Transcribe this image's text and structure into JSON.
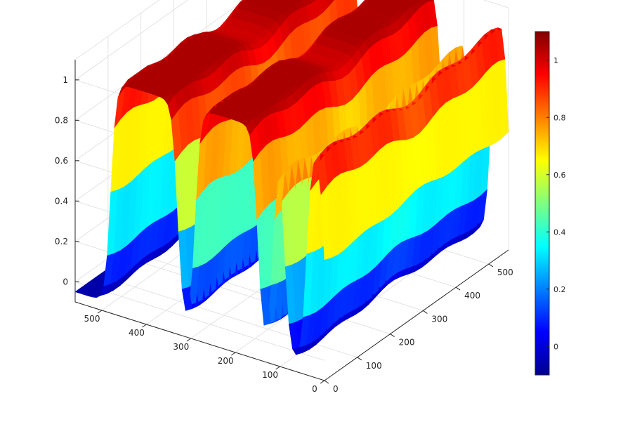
{
  "chart_data": {
    "type": "surface3d",
    "title": "",
    "xlabel": "",
    "ylabel": "",
    "zlabel": "",
    "colormap": "jet",
    "view": "3D perspective, x axis toward lower-right, y axis toward upper-right",
    "xlim": [
      0,
      560
    ],
    "ylim": [
      0,
      560
    ],
    "zlim": [
      -0.1,
      1.1
    ],
    "x_ticks": [
      0,
      100,
      200,
      300,
      400,
      500
    ],
    "y_ticks": [
      0,
      100,
      200,
      300,
      400,
      500
    ],
    "z_ticks": [
      0,
      0.2,
      0.4,
      0.6,
      0.8,
      1
    ],
    "x_tick_labels": [
      "0",
      "100",
      "200",
      "300",
      "400",
      "500"
    ],
    "y_tick_labels": [
      "0",
      "100",
      "200",
      "300",
      "400",
      "500"
    ],
    "z_tick_labels": [
      "0",
      "0.2",
      "0.4",
      "0.6",
      "0.8",
      "1"
    ],
    "grid": true,
    "colorbar": {
      "position": "right",
      "range": [
        -0.1,
        1.1
      ],
      "ticks": [
        0,
        0.2,
        0.4,
        0.6,
        0.8,
        1
      ],
      "tick_labels": [
        "0",
        "0.2",
        "0.4",
        "0.6",
        "0.8",
        "1"
      ]
    },
    "surface": {
      "x_bands": [
        {
          "from": 0,
          "to": 40,
          "value": 1.0
        },
        {
          "from": 40,
          "to": 90,
          "value": 0.0
        },
        {
          "from": 90,
          "to": 115,
          "value": 1.0
        },
        {
          "from": 115,
          "to": 150,
          "value": 0.0
        },
        {
          "from": 150,
          "to": 290,
          "value": 1.0
        },
        {
          "from": 290,
          "to": 330,
          "value": 0.0
        },
        {
          "from": 330,
          "to": 480,
          "value": 1.0
        },
        {
          "from": 480,
          "to": 560,
          "value": 0.0
        }
      ],
      "z_range": [
        -0.05,
        1.05
      ]
    }
  }
}
